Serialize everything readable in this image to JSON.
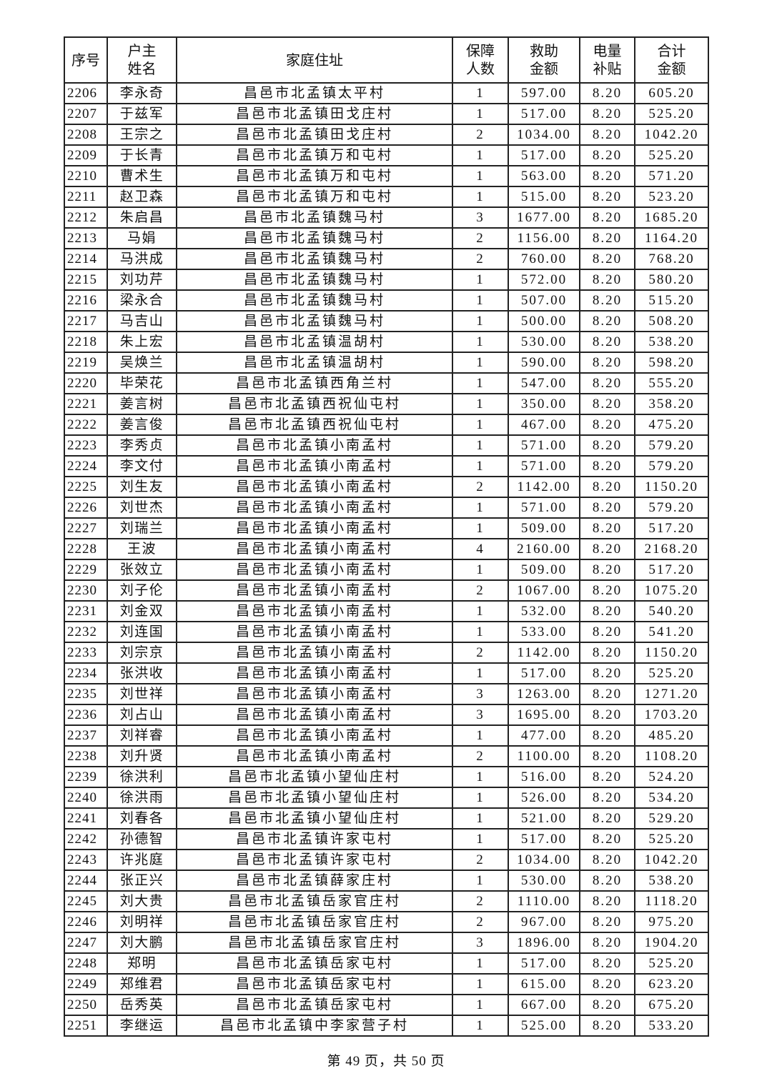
{
  "header": {
    "no": "序号",
    "name_l1": "户主",
    "name_l2": "姓名",
    "address": "家庭住址",
    "persons_l1": "保障",
    "persons_l2": "人数",
    "aid_l1": "救助",
    "aid_l2": "金额",
    "power_l1": "电量",
    "power_l2": "补贴",
    "total_l1": "合计",
    "total_l2": "金额"
  },
  "rows": [
    [
      "2206",
      "李永奇",
      "昌邑市北孟镇太平村",
      "1",
      "597.00",
      "8.20",
      "605.20"
    ],
    [
      "2207",
      "于兹军",
      "昌邑市北孟镇田戈庄村",
      "1",
      "517.00",
      "8.20",
      "525.20"
    ],
    [
      "2208",
      "王宗之",
      "昌邑市北孟镇田戈庄村",
      "2",
      "1034.00",
      "8.20",
      "1042.20"
    ],
    [
      "2209",
      "于长青",
      "昌邑市北孟镇万和屯村",
      "1",
      "517.00",
      "8.20",
      "525.20"
    ],
    [
      "2210",
      "曹术生",
      "昌邑市北孟镇万和屯村",
      "1",
      "563.00",
      "8.20",
      "571.20"
    ],
    [
      "2211",
      "赵卫森",
      "昌邑市北孟镇万和屯村",
      "1",
      "515.00",
      "8.20",
      "523.20"
    ],
    [
      "2212",
      "朱启昌",
      "昌邑市北孟镇魏马村",
      "3",
      "1677.00",
      "8.20",
      "1685.20"
    ],
    [
      "2213",
      "马娟",
      "昌邑市北孟镇魏马村",
      "2",
      "1156.00",
      "8.20",
      "1164.20"
    ],
    [
      "2214",
      "马洪成",
      "昌邑市北孟镇魏马村",
      "2",
      "760.00",
      "8.20",
      "768.20"
    ],
    [
      "2215",
      "刘功芹",
      "昌邑市北孟镇魏马村",
      "1",
      "572.00",
      "8.20",
      "580.20"
    ],
    [
      "2216",
      "梁永合",
      "昌邑市北孟镇魏马村",
      "1",
      "507.00",
      "8.20",
      "515.20"
    ],
    [
      "2217",
      "马吉山",
      "昌邑市北孟镇魏马村",
      "1",
      "500.00",
      "8.20",
      "508.20"
    ],
    [
      "2218",
      "朱上宏",
      "昌邑市北孟镇温胡村",
      "1",
      "530.00",
      "8.20",
      "538.20"
    ],
    [
      "2219",
      "吴焕兰",
      "昌邑市北孟镇温胡村",
      "1",
      "590.00",
      "8.20",
      "598.20"
    ],
    [
      "2220",
      "毕荣花",
      "昌邑市北孟镇西角兰村",
      "1",
      "547.00",
      "8.20",
      "555.20"
    ],
    [
      "2221",
      "姜言树",
      "昌邑市北孟镇西祝仙屯村",
      "1",
      "350.00",
      "8.20",
      "358.20"
    ],
    [
      "2222",
      "姜言俊",
      "昌邑市北孟镇西祝仙屯村",
      "1",
      "467.00",
      "8.20",
      "475.20"
    ],
    [
      "2223",
      "李秀贞",
      "昌邑市北孟镇小南孟村",
      "1",
      "571.00",
      "8.20",
      "579.20"
    ],
    [
      "2224",
      "李文付",
      "昌邑市北孟镇小南孟村",
      "1",
      "571.00",
      "8.20",
      "579.20"
    ],
    [
      "2225",
      "刘生友",
      "昌邑市北孟镇小南孟村",
      "2",
      "1142.00",
      "8.20",
      "1150.20"
    ],
    [
      "2226",
      "刘世杰",
      "昌邑市北孟镇小南孟村",
      "1",
      "571.00",
      "8.20",
      "579.20"
    ],
    [
      "2227",
      "刘瑞兰",
      "昌邑市北孟镇小南孟村",
      "1",
      "509.00",
      "8.20",
      "517.20"
    ],
    [
      "2228",
      "王波",
      "昌邑市北孟镇小南孟村",
      "4",
      "2160.00",
      "8.20",
      "2168.20"
    ],
    [
      "2229",
      "张效立",
      "昌邑市北孟镇小南孟村",
      "1",
      "509.00",
      "8.20",
      "517.20"
    ],
    [
      "2230",
      "刘子伦",
      "昌邑市北孟镇小南孟村",
      "2",
      "1067.00",
      "8.20",
      "1075.20"
    ],
    [
      "2231",
      "刘金双",
      "昌邑市北孟镇小南孟村",
      "1",
      "532.00",
      "8.20",
      "540.20"
    ],
    [
      "2232",
      "刘连国",
      "昌邑市北孟镇小南孟村",
      "1",
      "533.00",
      "8.20",
      "541.20"
    ],
    [
      "2233",
      "刘宗京",
      "昌邑市北孟镇小南孟村",
      "2",
      "1142.00",
      "8.20",
      "1150.20"
    ],
    [
      "2234",
      "张洪收",
      "昌邑市北孟镇小南孟村",
      "1",
      "517.00",
      "8.20",
      "525.20"
    ],
    [
      "2235",
      "刘世祥",
      "昌邑市北孟镇小南孟村",
      "3",
      "1263.00",
      "8.20",
      "1271.20"
    ],
    [
      "2236",
      "刘占山",
      "昌邑市北孟镇小南孟村",
      "3",
      "1695.00",
      "8.20",
      "1703.20"
    ],
    [
      "2237",
      "刘祥睿",
      "昌邑市北孟镇小南孟村",
      "1",
      "477.00",
      "8.20",
      "485.20"
    ],
    [
      "2238",
      "刘升贤",
      "昌邑市北孟镇小南孟村",
      "2",
      "1100.00",
      "8.20",
      "1108.20"
    ],
    [
      "2239",
      "徐洪利",
      "昌邑市北孟镇小望仙庄村",
      "1",
      "516.00",
      "8.20",
      "524.20"
    ],
    [
      "2240",
      "徐洪雨",
      "昌邑市北孟镇小望仙庄村",
      "1",
      "526.00",
      "8.20",
      "534.20"
    ],
    [
      "2241",
      "刘春各",
      "昌邑市北孟镇小望仙庄村",
      "1",
      "521.00",
      "8.20",
      "529.20"
    ],
    [
      "2242",
      "孙德智",
      "昌邑市北孟镇许家屯村",
      "1",
      "517.00",
      "8.20",
      "525.20"
    ],
    [
      "2243",
      "许兆庭",
      "昌邑市北孟镇许家屯村",
      "2",
      "1034.00",
      "8.20",
      "1042.20"
    ],
    [
      "2244",
      "张正兴",
      "昌邑市北孟镇薛家庄村",
      "1",
      "530.00",
      "8.20",
      "538.20"
    ],
    [
      "2245",
      "刘大贵",
      "昌邑市北孟镇岳家官庄村",
      "2",
      "1110.00",
      "8.20",
      "1118.20"
    ],
    [
      "2246",
      "刘明祥",
      "昌邑市北孟镇岳家官庄村",
      "2",
      "967.00",
      "8.20",
      "975.20"
    ],
    [
      "2247",
      "刘大鹏",
      "昌邑市北孟镇岳家官庄村",
      "3",
      "1896.00",
      "8.20",
      "1904.20"
    ],
    [
      "2248",
      "郑明",
      "昌邑市北孟镇岳家屯村",
      "1",
      "517.00",
      "8.20",
      "525.20"
    ],
    [
      "2249",
      "郑维君",
      "昌邑市北孟镇岳家屯村",
      "1",
      "615.00",
      "8.20",
      "623.20"
    ],
    [
      "2250",
      "岳秀英",
      "昌邑市北孟镇岳家屯村",
      "1",
      "667.00",
      "8.20",
      "675.20"
    ],
    [
      "2251",
      "李继运",
      "昌邑市北孟镇中李家营子村",
      "1",
      "525.00",
      "8.20",
      "533.20"
    ]
  ],
  "footer": "第 49 页，共 50 页"
}
